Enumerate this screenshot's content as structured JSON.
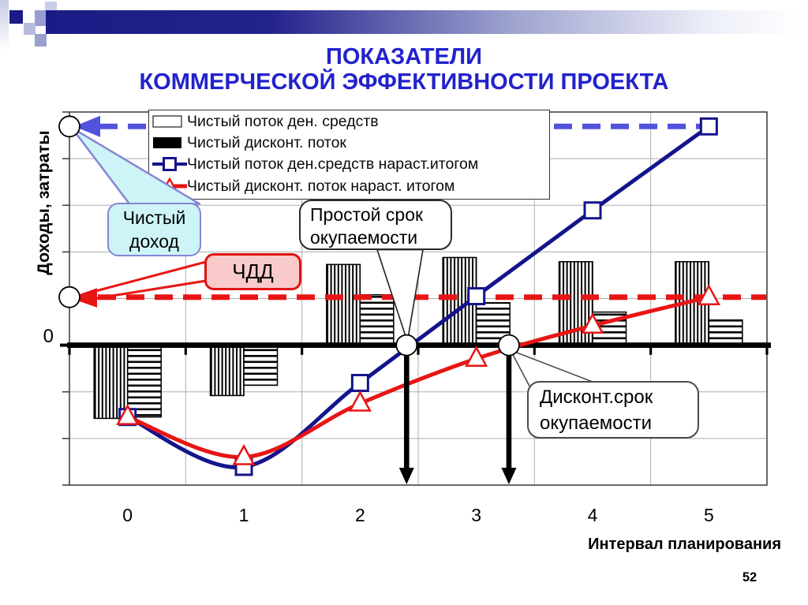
{
  "slide": {
    "title_line1": "ПОКАЗАТЕЛИ",
    "title_line2": "КОММЕРЧЕСКОЙ ЭФФЕКТИВНОСТИ ПРОЕКТА",
    "page_number": "52"
  },
  "axis": {
    "y_title": "Доходы, затраты",
    "x_title": "Интервал планирования",
    "zero_label": "0",
    "x_tick_labels": [
      "0",
      "1",
      "2",
      "3",
      "4",
      "5"
    ]
  },
  "colors": {
    "title_blue": "#2222cc",
    "navy_line": "#14148c",
    "blue_dashed": "#5252dd",
    "red_line": "#e81515",
    "grid_gray": "#adadad",
    "cyan_callout_fill": "#cdf4f6",
    "cyan_callout_border": "#8585d6",
    "pink_callout_fill": "#f8caca",
    "pink_callout_border": "#e01212",
    "header_navy": "#1b1b87"
  },
  "chart_data": {
    "type": "bar+line combo",
    "title": "",
    "xlabel": "Интервал планирования",
    "ylabel": "Доходы, затраты",
    "grid": true,
    "categories": [
      0,
      1,
      2,
      3,
      4,
      5
    ],
    "x_tick_labels": [
      "0",
      "1",
      "2",
      "3",
      "4",
      "5"
    ],
    "ylim_units": [
      -3,
      5
    ],
    "series": [
      {
        "name": "Чистый поток ден. средств",
        "type": "bar",
        "pattern": "vertical-hatch",
        "legend_swatch": "bar-outline",
        "values": [
          -1.57,
          -1.08,
          1.73,
          1.88,
          1.79,
          1.79
        ]
      },
      {
        "name": "Чистый дисконт. поток",
        "type": "bar",
        "pattern": "horizontal-hatch",
        "legend_swatch": "bar-solid",
        "values": [
          -1.54,
          -0.86,
          1.08,
          0.91,
          0.71,
          0.54
        ]
      },
      {
        "name": "Чистый поток ден.средств нараст.итогом",
        "type": "line",
        "color": "#14148c",
        "marker": "square",
        "legend_swatch": "line-square",
        "values": [
          -1.54,
          -2.61,
          -0.81,
          1.05,
          2.89,
          4.69
        ]
      },
      {
        "name": "Чистый дисконт. поток нараст. итогом",
        "type": "line",
        "color": "#e81515",
        "marker": "triangle",
        "legend_swatch": "line-triangle",
        "values": [
          -1.54,
          -2.4,
          -1.25,
          -0.29,
          0.42,
          1.03
        ]
      }
    ],
    "reference_lines": [
      {
        "label": "Чистый доход",
        "value": 4.69,
        "color": "#5252dd",
        "style": "dashed"
      },
      {
        "label": "ЧДД",
        "value": 1.03,
        "color": "#e81515",
        "style": "dashed"
      }
    ],
    "payback_markers": {
      "simple_payback_x": 2.4,
      "discounted_payback_x": 3.28
    }
  },
  "callouts": {
    "net_income": {
      "line1": "Чистый",
      "line2": "доход"
    },
    "npv": {
      "label": "ЧДД"
    },
    "simple_payback": {
      "line1": "Простой срок",
      "line2": "окупаемости"
    },
    "discounted_payback": {
      "line1": "Дисконт.срок",
      "line2": "окупаемости"
    }
  }
}
